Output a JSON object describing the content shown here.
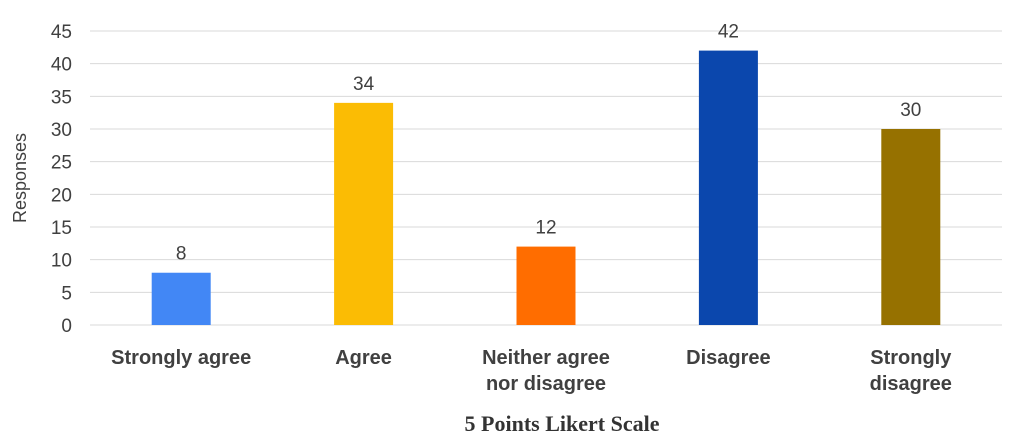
{
  "chart_data": {
    "type": "bar",
    "categories": [
      [
        "Strongly agree"
      ],
      [
        "Agree"
      ],
      [
        "Neither agree",
        "nor disagree"
      ],
      [
        "Disagree"
      ],
      [
        "Strongly",
        "disagree"
      ]
    ],
    "values": [
      8,
      34,
      12,
      42,
      30
    ],
    "colors": [
      "#4287f5",
      "#fbbc04",
      "#ff6d00",
      "#0b47ad",
      "#967100"
    ],
    "xlabel": "5 Points Likert Scale",
    "ylabel": "Responses",
    "ylim": [
      0,
      45
    ],
    "yticks": [
      0,
      5,
      10,
      15,
      20,
      25,
      30,
      35,
      40,
      45
    ],
    "grid": true,
    "legend": "none",
    "data_labels": true
  }
}
